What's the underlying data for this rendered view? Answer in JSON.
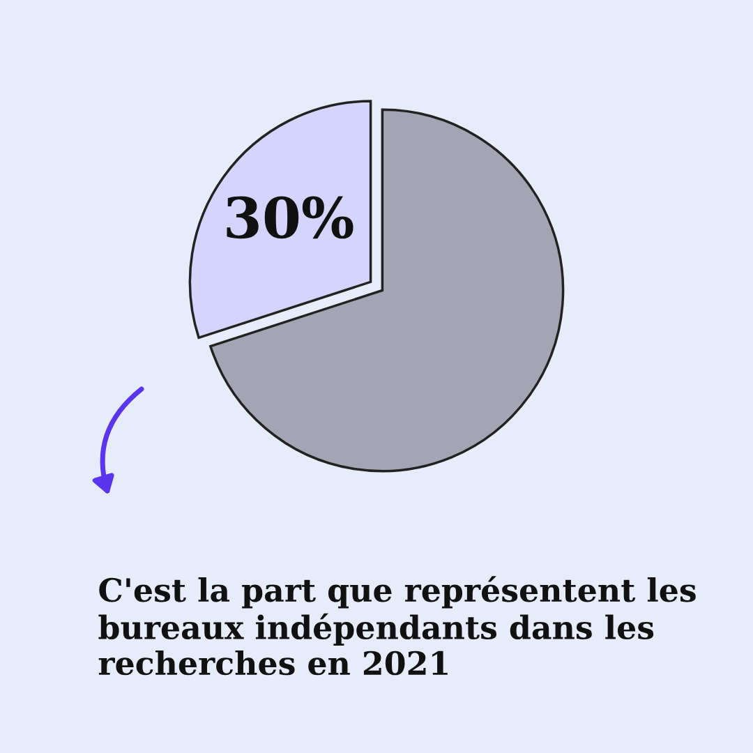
{
  "chart_data": {
    "type": "pie",
    "title": "C'est la part que représentent les bureaux indépendants dans les recherches en 2021",
    "categories": [
      null,
      null
    ],
    "values": [
      30,
      70
    ],
    "colors": [
      "#d4d4fc",
      "#a4a5b4"
    ],
    "value_labels": [
      "30%",
      null
    ]
  }
}
